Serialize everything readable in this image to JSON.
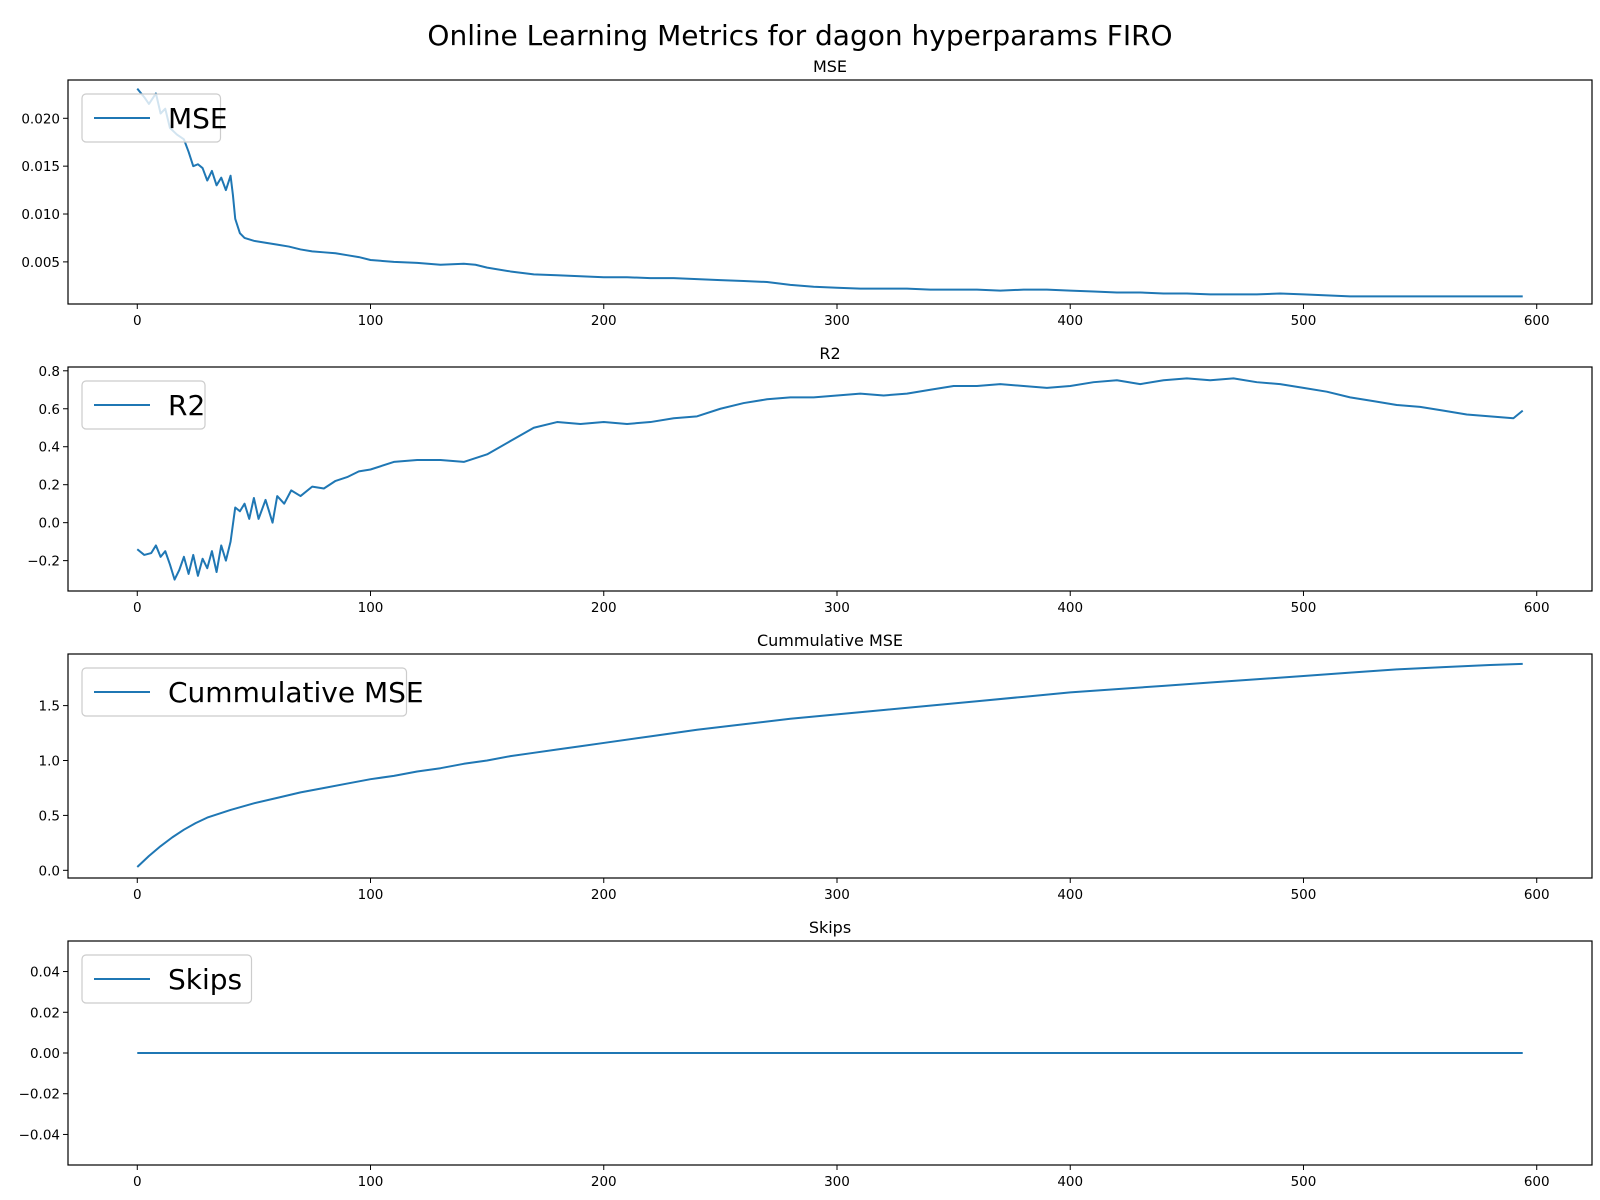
{
  "figure": {
    "title": "Online Learning Metrics for dagon hyperparams FIRO"
  },
  "colors": {
    "series": "#1f77b4"
  },
  "chart_data": [
    {
      "type": "line",
      "title": "MSE",
      "xlim": [
        -29.7,
        623.7
      ],
      "ylim": [
        0.0006,
        0.024
      ],
      "xticks": [
        0,
        100,
        200,
        300,
        400,
        500,
        600
      ],
      "yticks": [
        0.005,
        0.01,
        0.015,
        0.02
      ],
      "ytick_labels": [
        "0.005",
        "0.010",
        "0.015",
        "0.020"
      ],
      "legend": "upper left",
      "grid": false,
      "series": [
        {
          "name": "MSE",
          "points": [
            [
              0,
              0.0231
            ],
            [
              3,
              0.0222
            ],
            [
              5,
              0.0215
            ],
            [
              8,
              0.0226
            ],
            [
              10,
              0.0205
            ],
            [
              12,
              0.021
            ],
            [
              14,
              0.019
            ],
            [
              17,
              0.0183
            ],
            [
              20,
              0.0178
            ],
            [
              22,
              0.0165
            ],
            [
              24,
              0.015
            ],
            [
              26,
              0.0152
            ],
            [
              28,
              0.0148
            ],
            [
              30,
              0.0135
            ],
            [
              32,
              0.0145
            ],
            [
              34,
              0.013
            ],
            [
              36,
              0.0138
            ],
            [
              38,
              0.0125
            ],
            [
              40,
              0.014
            ],
            [
              41,
              0.012
            ],
            [
              42,
              0.0095
            ],
            [
              44,
              0.008
            ],
            [
              46,
              0.0075
            ],
            [
              50,
              0.0072
            ],
            [
              55,
              0.007
            ],
            [
              60,
              0.0068
            ],
            [
              65,
              0.0066
            ],
            [
              70,
              0.0063
            ],
            [
              75,
              0.0061
            ],
            [
              80,
              0.006
            ],
            [
              85,
              0.0059
            ],
            [
              90,
              0.0057
            ],
            [
              95,
              0.0055
            ],
            [
              100,
              0.0052
            ],
            [
              110,
              0.005
            ],
            [
              120,
              0.0049
            ],
            [
              130,
              0.0047
            ],
            [
              140,
              0.0048
            ],
            [
              145,
              0.0047
            ],
            [
              150,
              0.0044
            ],
            [
              160,
              0.004
            ],
            [
              170,
              0.0037
            ],
            [
              180,
              0.0036
            ],
            [
              190,
              0.0035
            ],
            [
              200,
              0.0034
            ],
            [
              210,
              0.0034
            ],
            [
              220,
              0.0033
            ],
            [
              230,
              0.0033
            ],
            [
              240,
              0.0032
            ],
            [
              250,
              0.0031
            ],
            [
              260,
              0.003
            ],
            [
              270,
              0.0029
            ],
            [
              280,
              0.0026
            ],
            [
              290,
              0.0024
            ],
            [
              300,
              0.0023
            ],
            [
              310,
              0.0022
            ],
            [
              320,
              0.0022
            ],
            [
              330,
              0.0022
            ],
            [
              340,
              0.0021
            ],
            [
              350,
              0.0021
            ],
            [
              360,
              0.0021
            ],
            [
              370,
              0.002
            ],
            [
              380,
              0.0021
            ],
            [
              390,
              0.0021
            ],
            [
              400,
              0.002
            ],
            [
              410,
              0.0019
            ],
            [
              420,
              0.0018
            ],
            [
              430,
              0.0018
            ],
            [
              440,
              0.0017
            ],
            [
              450,
              0.0017
            ],
            [
              460,
              0.0016
            ],
            [
              470,
              0.0016
            ],
            [
              480,
              0.0016
            ],
            [
              490,
              0.0017
            ],
            [
              500,
              0.0016
            ],
            [
              510,
              0.0015
            ],
            [
              520,
              0.0014
            ],
            [
              530,
              0.0014
            ],
            [
              540,
              0.0014
            ],
            [
              550,
              0.0014
            ],
            [
              560,
              0.0014
            ],
            [
              570,
              0.0014
            ],
            [
              580,
              0.0014
            ],
            [
              590,
              0.0014
            ],
            [
              594,
              0.0014
            ]
          ]
        }
      ]
    },
    {
      "type": "line",
      "title": "R2",
      "xlim": [
        -29.7,
        623.7
      ],
      "ylim": [
        -0.36,
        0.82
      ],
      "xticks": [
        0,
        100,
        200,
        300,
        400,
        500,
        600
      ],
      "yticks": [
        -0.2,
        0.0,
        0.2,
        0.4,
        0.6,
        0.8
      ],
      "ytick_labels": [
        "−0.2",
        "0.0",
        "0.2",
        "0.4",
        "0.6",
        "0.8"
      ],
      "legend": "upper left",
      "grid": false,
      "series": [
        {
          "name": "R2",
          "points": [
            [
              0,
              -0.14
            ],
            [
              3,
              -0.17
            ],
            [
              6,
              -0.16
            ],
            [
              8,
              -0.12
            ],
            [
              10,
              -0.18
            ],
            [
              12,
              -0.15
            ],
            [
              14,
              -0.22
            ],
            [
              16,
              -0.3
            ],
            [
              18,
              -0.25
            ],
            [
              20,
              -0.18
            ],
            [
              22,
              -0.27
            ],
            [
              24,
              -0.17
            ],
            [
              26,
              -0.28
            ],
            [
              28,
              -0.19
            ],
            [
              30,
              -0.24
            ],
            [
              32,
              -0.15
            ],
            [
              34,
              -0.26
            ],
            [
              36,
              -0.12
            ],
            [
              38,
              -0.2
            ],
            [
              40,
              -0.1
            ],
            [
              42,
              0.08
            ],
            [
              44,
              0.06
            ],
            [
              46,
              0.1
            ],
            [
              48,
              0.02
            ],
            [
              50,
              0.13
            ],
            [
              52,
              0.02
            ],
            [
              55,
              0.12
            ],
            [
              58,
              0.0
            ],
            [
              60,
              0.14
            ],
            [
              63,
              0.1
            ],
            [
              66,
              0.17
            ],
            [
              70,
              0.14
            ],
            [
              75,
              0.19
            ],
            [
              80,
              0.18
            ],
            [
              85,
              0.22
            ],
            [
              90,
              0.24
            ],
            [
              95,
              0.27
            ],
            [
              100,
              0.28
            ],
            [
              110,
              0.32
            ],
            [
              120,
              0.33
            ],
            [
              130,
              0.33
            ],
            [
              140,
              0.32
            ],
            [
              150,
              0.36
            ],
            [
              160,
              0.43
            ],
            [
              170,
              0.5
            ],
            [
              180,
              0.53
            ],
            [
              190,
              0.52
            ],
            [
              200,
              0.53
            ],
            [
              210,
              0.52
            ],
            [
              220,
              0.53
            ],
            [
              230,
              0.55
            ],
            [
              240,
              0.56
            ],
            [
              250,
              0.6
            ],
            [
              260,
              0.63
            ],
            [
              270,
              0.65
            ],
            [
              280,
              0.66
            ],
            [
              290,
              0.66
            ],
            [
              300,
              0.67
            ],
            [
              310,
              0.68
            ],
            [
              320,
              0.67
            ],
            [
              330,
              0.68
            ],
            [
              340,
              0.7
            ],
            [
              350,
              0.72
            ],
            [
              360,
              0.72
            ],
            [
              370,
              0.73
            ],
            [
              380,
              0.72
            ],
            [
              390,
              0.71
            ],
            [
              400,
              0.72
            ],
            [
              410,
              0.74
            ],
            [
              420,
              0.75
            ],
            [
              430,
              0.73
            ],
            [
              440,
              0.75
            ],
            [
              450,
              0.76
            ],
            [
              460,
              0.75
            ],
            [
              470,
              0.76
            ],
            [
              480,
              0.74
            ],
            [
              490,
              0.73
            ],
            [
              500,
              0.71
            ],
            [
              510,
              0.69
            ],
            [
              520,
              0.66
            ],
            [
              530,
              0.64
            ],
            [
              540,
              0.62
            ],
            [
              550,
              0.61
            ],
            [
              560,
              0.59
            ],
            [
              570,
              0.57
            ],
            [
              580,
              0.56
            ],
            [
              590,
              0.55
            ],
            [
              594,
              0.59
            ]
          ]
        }
      ]
    },
    {
      "type": "line",
      "title": "Cummulative MSE",
      "xlim": [
        -29.7,
        623.7
      ],
      "ylim": [
        -0.07,
        1.97
      ],
      "xticks": [
        0,
        100,
        200,
        300,
        400,
        500,
        600
      ],
      "yticks": [
        0.0,
        0.5,
        1.0,
        1.5
      ],
      "ytick_labels": [
        "0.0",
        "0.5",
        "1.0",
        "1.5"
      ],
      "legend": "upper left",
      "grid": false,
      "series": [
        {
          "name": "Cummulative MSE",
          "points": [
            [
              0,
              0.03
            ],
            [
              5,
              0.13
            ],
            [
              10,
              0.22
            ],
            [
              15,
              0.3
            ],
            [
              20,
              0.37
            ],
            [
              25,
              0.43
            ],
            [
              30,
              0.48
            ],
            [
              40,
              0.55
            ],
            [
              50,
              0.61
            ],
            [
              60,
              0.66
            ],
            [
              70,
              0.71
            ],
            [
              80,
              0.75
            ],
            [
              90,
              0.79
            ],
            [
              100,
              0.83
            ],
            [
              110,
              0.86
            ],
            [
              120,
              0.9
            ],
            [
              130,
              0.93
            ],
            [
              140,
              0.97
            ],
            [
              150,
              1.0
            ],
            [
              160,
              1.04
            ],
            [
              170,
              1.07
            ],
            [
              180,
              1.1
            ],
            [
              190,
              1.13
            ],
            [
              200,
              1.16
            ],
            [
              220,
              1.22
            ],
            [
              240,
              1.28
            ],
            [
              260,
              1.33
            ],
            [
              280,
              1.38
            ],
            [
              300,
              1.42
            ],
            [
              320,
              1.46
            ],
            [
              340,
              1.5
            ],
            [
              360,
              1.54
            ],
            [
              380,
              1.58
            ],
            [
              400,
              1.62
            ],
            [
              420,
              1.65
            ],
            [
              440,
              1.68
            ],
            [
              460,
              1.71
            ],
            [
              480,
              1.74
            ],
            [
              500,
              1.77
            ],
            [
              520,
              1.8
            ],
            [
              540,
              1.83
            ],
            [
              560,
              1.85
            ],
            [
              580,
              1.87
            ],
            [
              594,
              1.88
            ]
          ]
        }
      ]
    },
    {
      "type": "line",
      "title": "Skips",
      "xlim": [
        -29.7,
        623.7
      ],
      "ylim": [
        -0.055,
        0.055
      ],
      "xticks": [
        0,
        100,
        200,
        300,
        400,
        500,
        600
      ],
      "yticks": [
        -0.04,
        -0.02,
        0.0,
        0.02,
        0.04
      ],
      "ytick_labels": [
        "−0.04",
        "−0.02",
        "0.00",
        "0.02",
        "0.04"
      ],
      "legend": "upper left",
      "grid": false,
      "series": [
        {
          "name": "Skips",
          "points": [
            [
              0,
              0
            ],
            [
              594,
              0
            ]
          ]
        }
      ]
    }
  ]
}
